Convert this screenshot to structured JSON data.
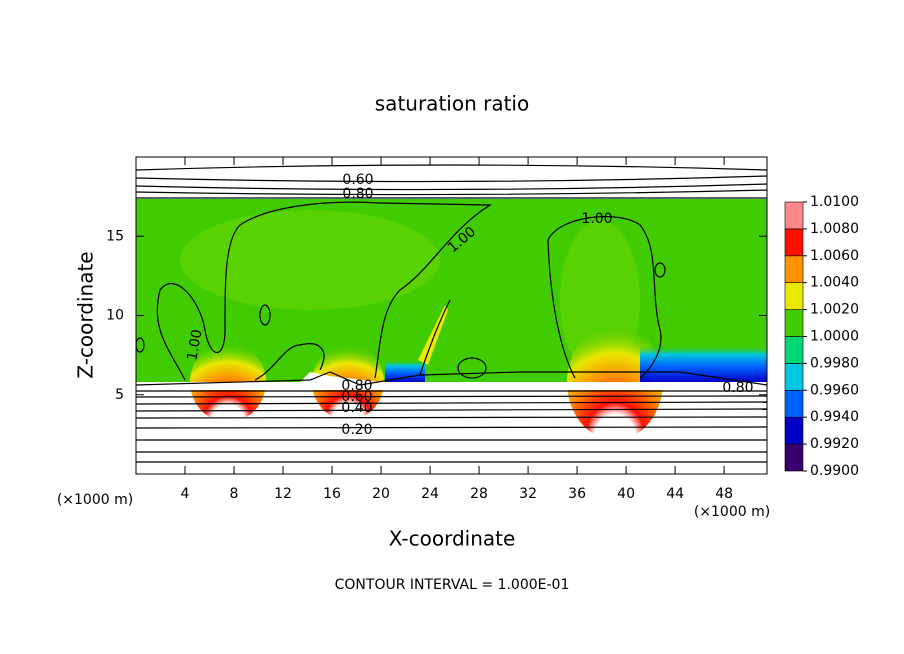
{
  "chart_data": {
    "type": "contour",
    "title": "saturation ratio",
    "x_label": "X-coordinate",
    "y_label": "Z-coordinate",
    "x_unit": "(×1000 m)",
    "note": "CONTOUR INTERVAL = 1.000E-01",
    "xlim": [
      0,
      51.5
    ],
    "ylim": [
      0,
      20
    ],
    "xticks": [
      4,
      8,
      12,
      16,
      20,
      24,
      28,
      32,
      36,
      40,
      44,
      48
    ],
    "yticks": [
      5,
      10,
      15
    ],
    "contour_labels": [
      {
        "value": 0.6,
        "label": "0.60"
      },
      {
        "value": 0.8,
        "label": "0.80"
      },
      {
        "value": 1,
        "label": "1.00"
      },
      {
        "value": 1,
        "label": "1.00"
      },
      {
        "value": 1,
        "label": "1.00"
      },
      {
        "value": 0.8,
        "label": "0.80"
      },
      {
        "value": 0.6,
        "label": "0.60"
      },
      {
        "value": 0.4,
        "label": "0.40"
      },
      {
        "value": 0.2,
        "label": "0.20"
      },
      {
        "value": 0.8,
        "label": "0.80"
      }
    ],
    "colorbar": {
      "ticks": [
        {
          "value": 0.99,
          "label": "0.9900"
        },
        {
          "value": 0.992,
          "label": "0.9920"
        },
        {
          "value": 0.994,
          "label": "0.9940"
        },
        {
          "value": 0.996,
          "label": "0.9960"
        },
        {
          "value": 0.998,
          "label": "0.9980"
        },
        {
          "value": 1,
          "label": "1.0000"
        },
        {
          "value": 1.002,
          "label": "1.0020"
        },
        {
          "value": 1.004,
          "label": "1.0040"
        },
        {
          "value": 1.006,
          "label": "1.0060"
        },
        {
          "value": 1.008,
          "label": "1.0080"
        },
        {
          "value": 1.01,
          "label": "1.0100"
        }
      ],
      "colors": [
        "#3a0070",
        "#0000c8",
        "#0060ff",
        "#00c8e0",
        "#00d878",
        "#40cc00",
        "#e8e800",
        "#ff9000",
        "#ff1000",
        "#ff8888"
      ]
    }
  }
}
